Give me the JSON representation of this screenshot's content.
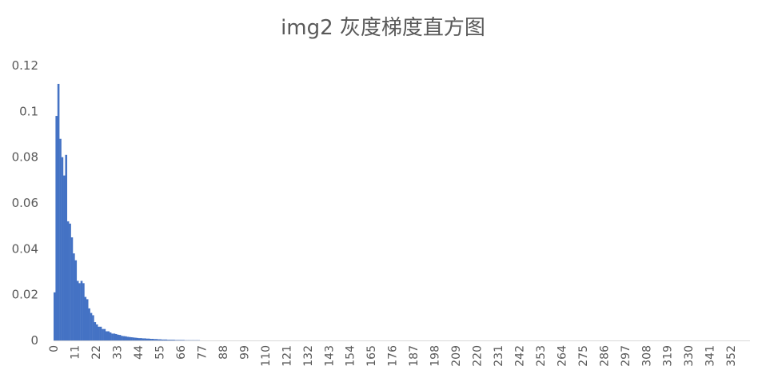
{
  "chart_data": {
    "type": "bar",
    "title": "img2 灰度梯度直方图",
    "xlabel": "",
    "ylabel": "",
    "ylim": [
      0,
      0.12
    ],
    "yticks": [
      "0",
      "0.02",
      "0.04",
      "0.06",
      "0.08",
      "0.1",
      "0.12"
    ],
    "xtick_labels": [
      "0",
      "11",
      "22",
      "33",
      "44",
      "55",
      "66",
      "77",
      "88",
      "99",
      "110",
      "121",
      "132",
      "143",
      "154",
      "165",
      "176",
      "187",
      "198",
      "209",
      "220",
      "231",
      "242",
      "253",
      "264",
      "275",
      "286",
      "297",
      "308",
      "319",
      "330",
      "341",
      "352"
    ],
    "x_start": 0,
    "bin_count": 362,
    "values": [
      0.021,
      0.098,
      0.112,
      0.088,
      0.08,
      0.072,
      0.081,
      0.052,
      0.051,
      0.045,
      0.038,
      0.035,
      0.026,
      0.025,
      0.026,
      0.025,
      0.019,
      0.018,
      0.014,
      0.012,
      0.011,
      0.008,
      0.007,
      0.006,
      0.006,
      0.005,
      0.005,
      0.004,
      0.004,
      0.0035,
      0.003,
      0.003,
      0.0028,
      0.0025,
      0.0024,
      0.002,
      0.0019,
      0.0018,
      0.0016,
      0.0015,
      0.0014,
      0.0013,
      0.0012,
      0.0011,
      0.001,
      0.001,
      0.0009,
      0.0009,
      0.0008,
      0.0008,
      0.0007,
      0.0007,
      0.0006,
      0.0006,
      0.0005,
      0.0005,
      0.0004,
      0.0004,
      0.0004,
      0.0003,
      0.0003,
      0.0003,
      0.0003,
      0.0002,
      0.0002,
      0.0002,
      0.0002,
      0.0002,
      0.0001,
      0.0001,
      0.0001,
      0.0001,
      0.0001,
      0.0001,
      0.0001,
      0.0001
    ],
    "color": "#4472C4",
    "grid": false,
    "legend": "none"
  }
}
